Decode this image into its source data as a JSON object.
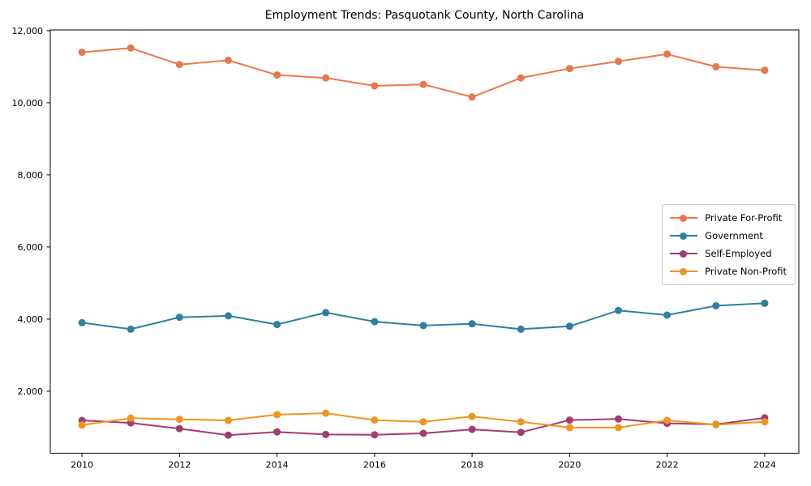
{
  "chart_data": {
    "type": "line",
    "title": "Employment Trends: Pasquotank County, North Carolina",
    "xlabel": "",
    "ylabel": "",
    "grid": false,
    "legend_position": "center right",
    "x": [
      2010,
      2011,
      2012,
      2013,
      2014,
      2015,
      2016,
      2017,
      2018,
      2019,
      2020,
      2021,
      2022,
      2023,
      2024
    ],
    "x_tick_years": [
      2010,
      2012,
      2014,
      2016,
      2018,
      2020,
      2022,
      2024
    ],
    "x_tick_labels": [
      "2010",
      "2012",
      "2014",
      "2016",
      "2018",
      "2020",
      "2022",
      "2024"
    ],
    "y_ticks": [
      2000,
      4000,
      6000,
      8000,
      10000,
      12000
    ],
    "y_tick_labels": [
      "2,000",
      "4,000",
      "6,000",
      "8,000",
      "10,000",
      "12,000"
    ],
    "xlim": [
      2009.35,
      2024.7
    ],
    "ylim": [
      280,
      12020
    ],
    "series": [
      {
        "name": "Private For-Profit",
        "color": "#E8784C",
        "values": [
          11400,
          11520,
          11060,
          11180,
          10770,
          10690,
          10470,
          10510,
          10160,
          10690,
          10950,
          11150,
          11350,
          11000,
          10900
        ]
      },
      {
        "name": "Government",
        "color": "#2E7F9E",
        "values": [
          3900,
          3720,
          4050,
          4090,
          3850,
          4180,
          3930,
          3820,
          3870,
          3720,
          3800,
          4240,
          4110,
          4370,
          4440
        ]
      },
      {
        "name": "Self-Employed",
        "color": "#A23B72",
        "values": [
          1190,
          1120,
          960,
          780,
          870,
          800,
          790,
          830,
          940,
          860,
          1200,
          1230,
          1110,
          1080,
          1260
        ]
      },
      {
        "name": "Private Non-Profit",
        "color": "#F0941E",
        "values": [
          1060,
          1250,
          1220,
          1190,
          1350,
          1390,
          1200,
          1150,
          1300,
          1150,
          990,
          990,
          1190,
          1070,
          1150
        ]
      }
    ]
  }
}
